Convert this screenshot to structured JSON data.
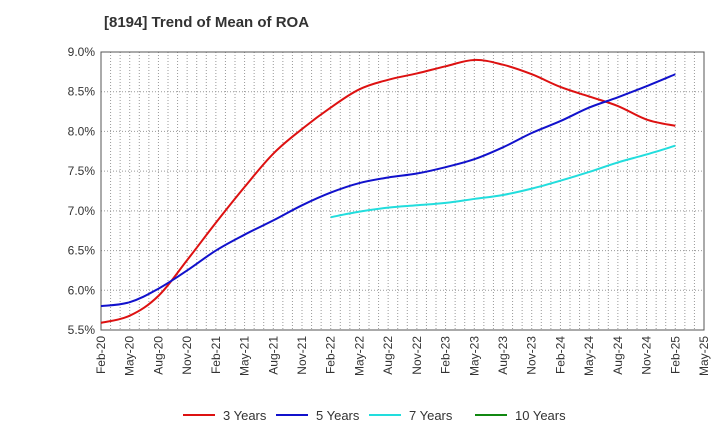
{
  "chart_data": {
    "type": "line",
    "title": "[8194]  Trend of Mean of ROA",
    "xlabel": "",
    "ylabel": "",
    "y_unit": "%",
    "ylim": [
      5.5,
      9.0
    ],
    "y_ticks": [
      5.5,
      6.0,
      6.5,
      7.0,
      7.5,
      8.0,
      8.5,
      9.0
    ],
    "y_tick_labels": [
      "5.5%",
      "6.0%",
      "6.5%",
      "7.0%",
      "7.5%",
      "8.0%",
      "8.5%",
      "9.0%"
    ],
    "x_tick_labels": [
      "Feb-20",
      "May-20",
      "Aug-20",
      "Nov-20",
      "Feb-21",
      "May-21",
      "Aug-21",
      "Nov-21",
      "Feb-22",
      "May-22",
      "Aug-22",
      "Nov-22",
      "Feb-23",
      "May-23",
      "Aug-23",
      "Nov-23",
      "Feb-24",
      "May-24",
      "Aug-24",
      "Nov-24",
      "Feb-25",
      "May-25"
    ],
    "grid": true,
    "legend_position": "bottom",
    "series": [
      {
        "name": "3 Years",
        "color": "#dd1111",
        "x": [
          "Feb-20",
          "May-20",
          "Aug-20",
          "Nov-20",
          "Feb-21",
          "May-21",
          "Aug-21",
          "Nov-21",
          "Feb-22",
          "May-22",
          "Aug-22",
          "Nov-22",
          "Feb-23",
          "May-23",
          "Aug-23",
          "Nov-23",
          "Feb-24",
          "May-24",
          "Aug-24",
          "Nov-24",
          "Feb-25"
        ],
        "values": [
          5.59,
          5.68,
          5.93,
          6.38,
          6.85,
          7.3,
          7.72,
          8.03,
          8.3,
          8.53,
          8.65,
          8.73,
          8.82,
          8.9,
          8.84,
          8.72,
          8.56,
          8.44,
          8.32,
          8.15,
          8.07
        ]
      },
      {
        "name": "5 Years",
        "color": "#1111cc",
        "x": [
          "Feb-20",
          "May-20",
          "Aug-20",
          "Nov-20",
          "Feb-21",
          "May-21",
          "Aug-21",
          "Nov-21",
          "Feb-22",
          "May-22",
          "Aug-22",
          "Nov-22",
          "Feb-23",
          "May-23",
          "Aug-23",
          "Nov-23",
          "Feb-24",
          "May-24",
          "Aug-24",
          "Nov-24",
          "Feb-25"
        ],
        "values": [
          5.8,
          5.85,
          6.02,
          6.25,
          6.5,
          6.7,
          6.88,
          7.07,
          7.23,
          7.35,
          7.42,
          7.47,
          7.55,
          7.65,
          7.8,
          7.98,
          8.13,
          8.3,
          8.43,
          8.57,
          8.72
        ]
      },
      {
        "name": "7 Years",
        "color": "#22dddd",
        "x": [
          "Feb-22",
          "May-22",
          "Aug-22",
          "Nov-22",
          "Feb-23",
          "May-23",
          "Aug-23",
          "Nov-23",
          "Feb-24",
          "May-24",
          "Aug-24",
          "Nov-24",
          "Feb-25"
        ],
        "values": [
          6.92,
          6.99,
          7.04,
          7.07,
          7.1,
          7.15,
          7.2,
          7.28,
          7.38,
          7.49,
          7.61,
          7.71,
          7.82
        ]
      },
      {
        "name": "10 Years",
        "color": "#118811",
        "x": [],
        "values": []
      }
    ]
  }
}
